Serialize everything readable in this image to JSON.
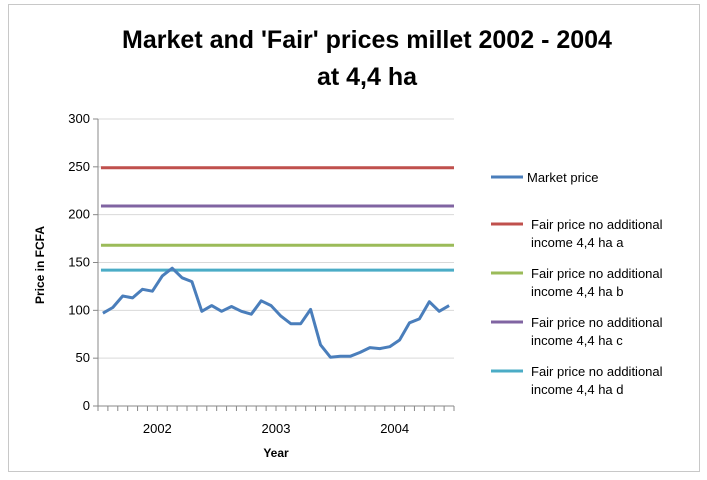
{
  "chart_data": {
    "type": "line",
    "title_lines": [
      "Market and 'Fair' prices millet 2002 - 2004",
      "at 4,4 ha"
    ],
    "xlabel": "Year",
    "ylabel": "Price in FCFA",
    "ylim": [
      0,
      300
    ],
    "y_ticks": [
      0,
      50,
      100,
      150,
      200,
      250,
      300
    ],
    "x_year_labels": [
      "2002",
      "2003",
      "2004"
    ],
    "grid": "horizontal",
    "legend_position": "right",
    "series": [
      {
        "name": "Market price",
        "color": "#4a7ebb",
        "values": [
          97,
          103,
          115,
          113,
          122,
          120,
          136,
          144,
          134,
          130,
          99,
          105,
          99,
          104,
          99,
          96,
          110,
          105,
          94,
          86,
          86,
          101,
          64,
          51,
          52,
          52,
          56,
          61,
          60,
          62,
          69,
          87,
          91,
          109,
          99,
          105
        ]
      },
      {
        "name_lines": [
          "Fair price no additional",
          "income 4,4 ha a"
        ],
        "color": "#c0504d",
        "values": [
          249
        ]
      },
      {
        "name_lines": [
          "Fair price no additional",
          "income 4,4 ha b"
        ],
        "color": "#9bbb59",
        "values": [
          168
        ]
      },
      {
        "name_lines": [
          "Fair price no additional",
          "income 4,4 ha c"
        ],
        "color": "#8064a2",
        "values": [
          209
        ]
      },
      {
        "name_lines": [
          "Fair price no additional",
          "income 4,4 ha d"
        ],
        "color": "#4bacc6",
        "values": [
          142
        ]
      }
    ]
  }
}
